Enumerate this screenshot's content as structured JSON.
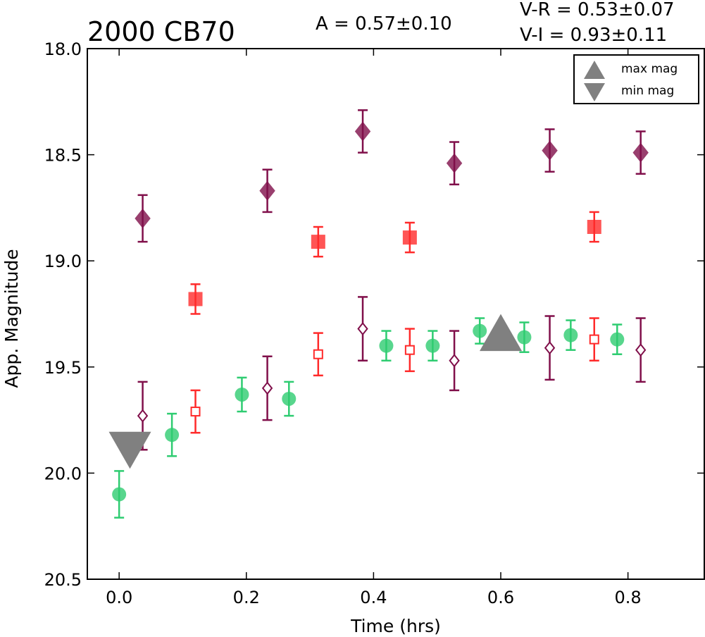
{
  "chart_data": {
    "type": "scatter",
    "title": "2000 CB70",
    "annotations": {
      "amplitude": "A  = 0.57±0.10",
      "v_r": "V-R = 0.53±0.07",
      "v_i": "V-I  = 0.93±0.11"
    },
    "xlabel": "Time (hrs)",
    "ylabel": "App. Magnitude",
    "xlim": [
      -0.05,
      0.92
    ],
    "ylim": [
      20.5,
      18.0
    ],
    "y_inverted": true,
    "grid": false,
    "legend_position": "top-right",
    "x_ticks": [
      "0.0",
      "0.2",
      "0.4",
      "0.6",
      "0.8"
    ],
    "y_ticks": [
      "18.0",
      "18.5",
      "19.0",
      "19.5",
      "20.0",
      "20.5"
    ],
    "legend": [
      {
        "label": "max mag",
        "marker": "triangle-up"
      },
      {
        "label": "min mag",
        "marker": "triangle-down"
      }
    ],
    "colors": {
      "green": "#2ecc71",
      "red": "#ff2a2a",
      "purple": "#800f4a",
      "gray": "#808080"
    },
    "series": [
      {
        "marker": "circle",
        "filled": true,
        "color": "#2ecc71",
        "x": [
          0.0,
          0.083,
          0.193,
          0.267,
          0.42,
          0.493,
          0.567,
          0.637,
          0.71,
          0.783
        ],
        "y": [
          20.1,
          19.82,
          19.63,
          19.65,
          19.4,
          19.4,
          19.33,
          19.36,
          19.35,
          19.37
        ],
        "err": [
          0.11,
          0.1,
          0.08,
          0.08,
          0.07,
          0.07,
          0.06,
          0.07,
          0.07,
          0.07
        ]
      },
      {
        "marker": "square",
        "filled": true,
        "color": "#ff2a2a",
        "x": [
          0.12,
          0.313,
          0.457,
          0.747
        ],
        "y": [
          19.18,
          18.91,
          18.89,
          18.84
        ],
        "err": [
          0.07,
          0.07,
          0.07,
          0.07
        ]
      },
      {
        "marker": "diamond",
        "filled": true,
        "color": "#800f4a",
        "x": [
          0.037,
          0.233,
          0.383,
          0.527,
          0.677,
          0.82
        ],
        "y": [
          18.8,
          18.67,
          18.39,
          18.54,
          18.48,
          18.49
        ],
        "err": [
          0.11,
          0.1,
          0.1,
          0.1,
          0.1,
          0.1
        ]
      },
      {
        "marker": "square",
        "filled": false,
        "color": "#ff2a2a",
        "x": [
          0.12,
          0.313,
          0.457,
          0.747
        ],
        "y": [
          19.71,
          19.44,
          19.42,
          19.37
        ],
        "err": [
          0.1,
          0.1,
          0.1,
          0.1
        ]
      },
      {
        "marker": "diamond",
        "filled": false,
        "color": "#800f4a",
        "x": [
          0.037,
          0.233,
          0.383,
          0.527,
          0.677,
          0.82
        ],
        "y": [
          19.73,
          19.6,
          19.32,
          19.47,
          19.41,
          19.42
        ],
        "err": [
          0.16,
          0.15,
          0.15,
          0.14,
          0.15,
          0.15
        ]
      },
      {
        "marker": "triangle-up",
        "filled": true,
        "color": "#808080",
        "x": [
          0.6
        ],
        "y": [
          19.35
        ],
        "err": []
      },
      {
        "marker": "triangle-down",
        "filled": true,
        "color": "#808080",
        "x": [
          0.017
        ],
        "y": [
          19.88
        ],
        "err": []
      }
    ]
  }
}
